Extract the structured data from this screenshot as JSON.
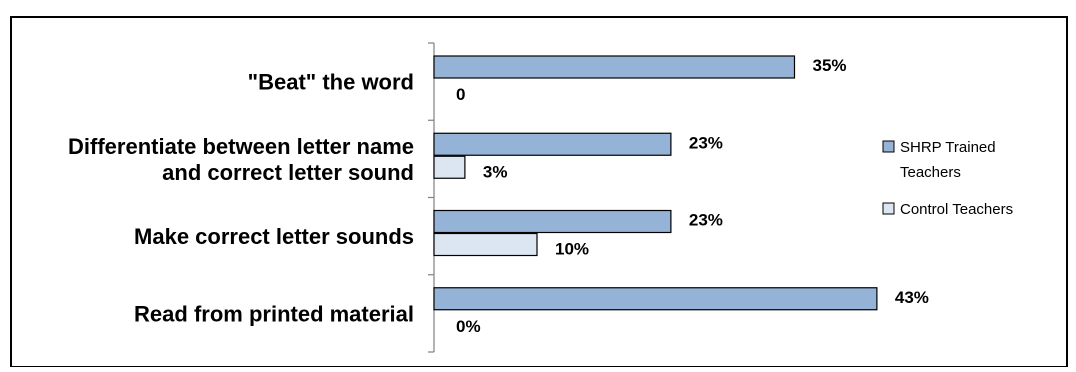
{
  "chart_data": {
    "type": "bar",
    "orientation": "horizontal",
    "categories": [
      "\"Beat\" the word",
      "Differentiate between letter name and correct letter sound",
      "Make correct letter sounds",
      "Read from printed material"
    ],
    "category_label_lines": [
      [
        "\"Beat\" the word"
      ],
      [
        "Differentiate between letter name",
        "and correct letter sound"
      ],
      [
        "Make correct letter sounds"
      ],
      [
        "Read from printed material"
      ]
    ],
    "series": [
      {
        "name": "SHRP Trained Teachers",
        "legend_lines": [
          "SHRP Trained",
          "Teachers"
        ],
        "values": [
          35,
          23,
          23,
          43
        ],
        "labels": [
          "35%",
          "23%",
          "23%",
          "43%"
        ],
        "color": "#95b3d7"
      },
      {
        "name": "Control Teachers",
        "legend_lines": [
          "Control Teachers"
        ],
        "values": [
          0,
          3,
          10,
          0
        ],
        "labels": [
          "0",
          "3%",
          "10%",
          "0%"
        ],
        "color": "#dce6f2"
      }
    ],
    "xlim": [
      0,
      45
    ],
    "grid": false,
    "legend_position": "right"
  }
}
